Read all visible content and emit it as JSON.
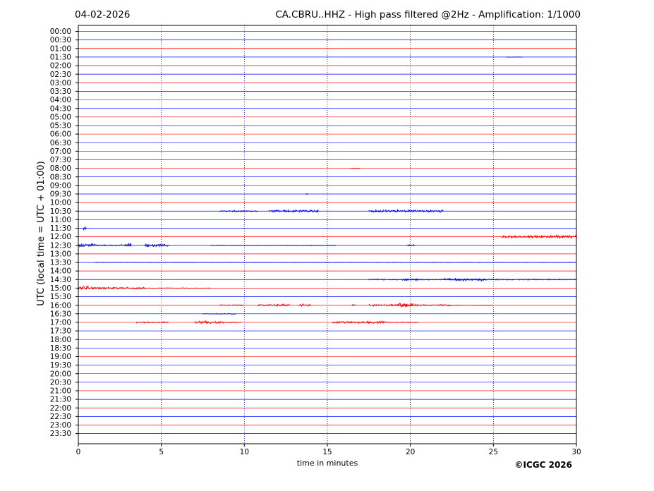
{
  "header": {
    "date": "04-02-2026",
    "title": "CA.CBRU..HHZ - High pass filtered @2Hz - Amplification: 1/1000"
  },
  "copyright": "©ICGC 2026",
  "chart_data": {
    "type": "line",
    "title": "CA.CBRU..HHZ - High pass filtered @2Hz - Amplification: 1/1000",
    "subtitle": "04-02-2026",
    "xlabel": "time in minutes",
    "ylabel": "UTC (local time = UTC + 01:00)",
    "xlim": [
      0,
      30
    ],
    "x_ticks": [
      "0",
      "5",
      "10",
      "15",
      "20",
      "25",
      "30"
    ],
    "x_gridlines_at": [
      5,
      10,
      15,
      20,
      25
    ],
    "grid": "vertical-dotted",
    "trace_colors": [
      "#ff0000",
      "#0000ff"
    ],
    "grid_color": "#00008b",
    "rows": [
      "00:00",
      "00:30",
      "01:00",
      "01:30",
      "02:00",
      "02:30",
      "03:00",
      "03:30",
      "04:00",
      "04:30",
      "05:00",
      "05:30",
      "06:00",
      "06:30",
      "07:00",
      "07:30",
      "08:00",
      "08:30",
      "09:00",
      "09:30",
      "10:00",
      "10:30",
      "11:00",
      "11:30",
      "12:00",
      "12:30",
      "13:00",
      "13:30",
      "14:00",
      "14:30",
      "15:00",
      "15:30",
      "16:00",
      "16:30",
      "17:00",
      "17:30",
      "18:00",
      "18:30",
      "19:00",
      "19:30",
      "20:00",
      "20:30",
      "21:00",
      "21:30",
      "22:00",
      "22:30",
      "23:00",
      "23:30"
    ],
    "events": [
      {
        "row": "01:30",
        "start": 25.8,
        "end": 26.8,
        "amp": 0.5
      },
      {
        "row": "08:00",
        "start": 16.4,
        "end": 17.0,
        "amp": 0.6
      },
      {
        "row": "09:30",
        "start": 13.7,
        "end": 13.9,
        "amp": 0.8
      },
      {
        "row": "10:30",
        "start": 8.5,
        "end": 10.8,
        "amp": 1.2
      },
      {
        "row": "10:30",
        "start": 11.5,
        "end": 14.5,
        "amp": 2.2
      },
      {
        "row": "10:30",
        "start": 17.5,
        "end": 22.0,
        "amp": 2.0
      },
      {
        "row": "11:30",
        "start": 0.3,
        "end": 0.5,
        "amp": 3.0
      },
      {
        "row": "12:00",
        "start": 25.5,
        "end": 30.0,
        "amp": 2.5
      },
      {
        "row": "12:30",
        "start": 0.0,
        "end": 1.0,
        "amp": 3.0
      },
      {
        "row": "12:30",
        "start": 1.0,
        "end": 3.2,
        "amp": 1.2
      },
      {
        "row": "12:30",
        "start": 2.8,
        "end": 3.2,
        "amp": 3.5
      },
      {
        "row": "12:30",
        "start": 4.0,
        "end": 5.5,
        "amp": 2.2
      },
      {
        "row": "12:30",
        "start": 8.0,
        "end": 15.5,
        "amp": 0.6
      },
      {
        "row": "12:30",
        "start": 19.8,
        "end": 20.3,
        "amp": 1.5
      },
      {
        "row": "13:30",
        "start": 1.0,
        "end": 30.0,
        "amp": 0.4
      },
      {
        "row": "14:30",
        "start": 17.5,
        "end": 30.0,
        "amp": 1.0
      },
      {
        "row": "14:30",
        "start": 19.5,
        "end": 20.5,
        "amp": 1.8
      },
      {
        "row": "14:30",
        "start": 22.0,
        "end": 24.5,
        "amp": 2.2
      },
      {
        "row": "15:00",
        "start": 0.0,
        "end": 1.0,
        "amp": 3.5
      },
      {
        "row": "15:00",
        "start": 1.0,
        "end": 4.0,
        "amp": 1.5
      },
      {
        "row": "15:00",
        "start": 4.0,
        "end": 8.0,
        "amp": 0.6
      },
      {
        "row": "16:00",
        "start": 8.5,
        "end": 10.0,
        "amp": 1.2
      },
      {
        "row": "16:00",
        "start": 10.8,
        "end": 12.8,
        "amp": 1.8
      },
      {
        "row": "16:00",
        "start": 13.3,
        "end": 14.0,
        "amp": 2.2
      },
      {
        "row": "16:00",
        "start": 16.5,
        "end": 16.7,
        "amp": 2.0
      },
      {
        "row": "16:00",
        "start": 17.5,
        "end": 22.5,
        "amp": 1.5
      },
      {
        "row": "16:00",
        "start": 19.2,
        "end": 20.2,
        "amp": 3.8
      },
      {
        "row": "16:00",
        "start": 22.5,
        "end": 25.0,
        "amp": 0.6
      },
      {
        "row": "16:30",
        "start": 7.5,
        "end": 9.5,
        "amp": 0.8
      },
      {
        "row": "17:00",
        "start": 3.5,
        "end": 5.5,
        "amp": 1.0
      },
      {
        "row": "17:00",
        "start": 7.0,
        "end": 8.8,
        "amp": 2.2
      },
      {
        "row": "17:00",
        "start": 8.8,
        "end": 9.8,
        "amp": 1.0
      },
      {
        "row": "17:00",
        "start": 15.3,
        "end": 18.5,
        "amp": 1.8
      },
      {
        "row": "17:00",
        "start": 18.5,
        "end": 20.5,
        "amp": 0.8
      }
    ]
  }
}
